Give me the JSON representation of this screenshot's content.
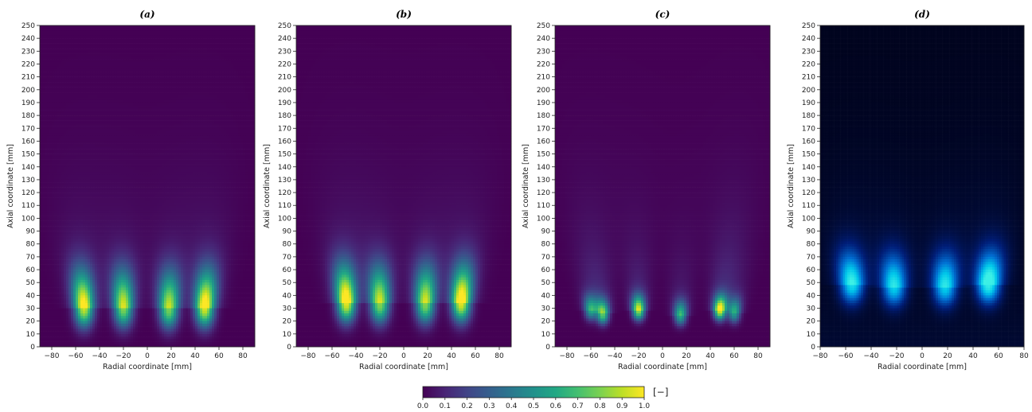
{
  "chart_data": {
    "panels": [
      {
        "type": "heatmap",
        "title": "(a)",
        "xlabel": "Radial coordinate [mm]",
        "ylabel": "Axial coordinate [mm]",
        "xlim": [
          -90,
          90
        ],
        "ylim": [
          0,
          250
        ],
        "colormap": "viridis",
        "blobs": [
          {
            "x": -53,
            "y": 30,
            "peak": 0.92
          },
          {
            "x": -20,
            "y": 30,
            "peak": 0.82
          },
          {
            "x": 18,
            "y": 29,
            "peak": 0.8
          },
          {
            "x": 48,
            "y": 30,
            "peak": 0.95
          }
        ]
      },
      {
        "type": "heatmap",
        "title": "(b)",
        "xlabel": "Radial coordinate [mm]",
        "ylabel": "Axial coordinate [mm]",
        "xlim": [
          -90,
          90
        ],
        "ylim": [
          0,
          250
        ],
        "colormap": "viridis",
        "blobs": [
          {
            "x": -48,
            "y": 34,
            "peak": 0.97
          },
          {
            "x": -20,
            "y": 33,
            "peak": 0.82
          },
          {
            "x": 18,
            "y": 33,
            "peak": 0.82
          },
          {
            "x": 48,
            "y": 34,
            "peak": 0.97
          }
        ]
      },
      {
        "type": "heatmap",
        "title": "(c)",
        "xlabel": "Radial coordinate [mm]",
        "ylabel": "Axial coordinate [mm]",
        "xlim": [
          -90,
          90
        ],
        "ylim": [
          0,
          250
        ],
        "colormap": "viridis",
        "blobs": [
          {
            "x": -60,
            "y": 28,
            "peak": 0.55
          },
          {
            "x": -50,
            "y": 25,
            "peak": 0.75
          },
          {
            "x": -20,
            "y": 28,
            "peak": 0.85
          },
          {
            "x": 15,
            "y": 24,
            "peak": 0.6
          },
          {
            "x": 48,
            "y": 28,
            "peak": 0.95
          },
          {
            "x": 60,
            "y": 26,
            "peak": 0.55
          }
        ]
      },
      {
        "type": "heatmap",
        "title": "(d)",
        "xlabel": "Radial coordinate [mm]",
        "ylabel": "Axial coordinate [mm]",
        "xlim": [
          -80,
          80
        ],
        "ylim": [
          0,
          250
        ],
        "colormap": "winter-on-black",
        "blobs": [
          {
            "x": -55,
            "y": 48,
            "peak": 0.85
          },
          {
            "x": -22,
            "y": 46,
            "peak": 0.8
          },
          {
            "x": 18,
            "y": 46,
            "peak": 0.8
          },
          {
            "x": 52,
            "y": 48,
            "peak": 0.95
          }
        ]
      }
    ],
    "x_ticks": [
      -80,
      -60,
      -40,
      -20,
      0,
      20,
      40,
      60,
      80
    ],
    "y_ticks": [
      0,
      10,
      20,
      30,
      40,
      50,
      60,
      70,
      80,
      90,
      100,
      110,
      120,
      130,
      140,
      150,
      160,
      170,
      180,
      190,
      200,
      210,
      220,
      230,
      240,
      250
    ],
    "colorbar": {
      "ticks": [
        "0.0",
        "0.1",
        "0.2",
        "0.3",
        "0.4",
        "0.5",
        "0.6",
        "0.7",
        "0.8",
        "0.9",
        "1.0"
      ],
      "unit": "[−]",
      "range": [
        0,
        1
      ]
    }
  }
}
